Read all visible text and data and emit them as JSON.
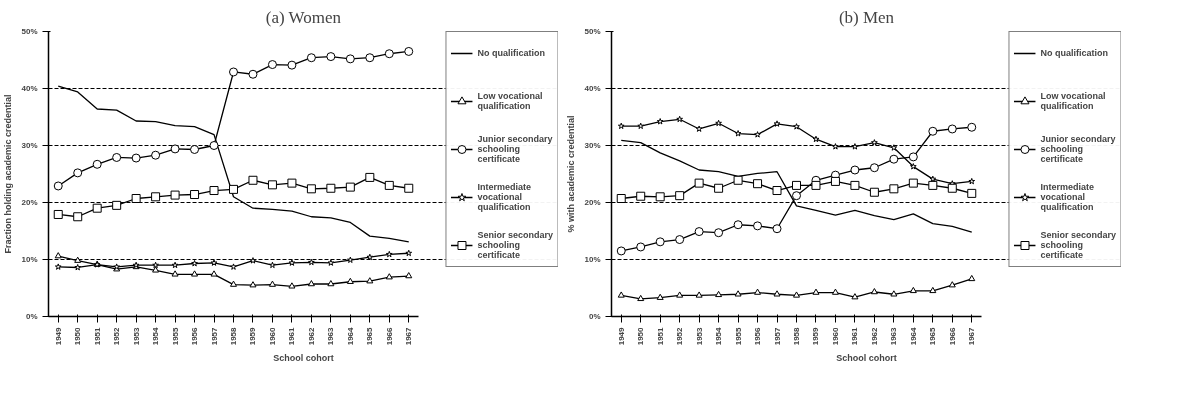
{
  "chart_data": [
    {
      "type": "line",
      "title": "(a) Women",
      "xlabel": "School cohort",
      "ylabel": "Fraction holding academic credential",
      "categories": [
        "1949",
        "1950",
        "1951",
        "1952",
        "1953",
        "1954",
        "1955",
        "1956",
        "1957",
        "1958",
        "1959",
        "1960",
        "1961",
        "1962",
        "1963",
        "1964",
        "1965",
        "1966",
        "1967"
      ],
      "ylim": [
        0,
        50
      ],
      "yticks": [
        {
          "value": 0,
          "label": "0%"
        },
        {
          "value": 10,
          "label": "10%"
        },
        {
          "value": 20,
          "label": "20%"
        },
        {
          "value": 30,
          "label": "30%"
        },
        {
          "value": 40,
          "label": "40%"
        },
        {
          "value": 50,
          "label": "50%"
        }
      ],
      "grid": "y",
      "legend": "right",
      "line_style": "solid",
      "series": [
        {
          "name": "No qualification",
          "color": "#000000",
          "marker": "none",
          "values": [
            40.4,
            39.4,
            36.4,
            36.2,
            34.3,
            34.2,
            33.5,
            33.3,
            31.9,
            21.0,
            19.0,
            18.8,
            18.5,
            17.5,
            17.3,
            16.5,
            14.1,
            13.7,
            13.1
          ]
        },
        {
          "name": "Low vocational qualification",
          "color": "#000000",
          "marker": "triangle",
          "values": [
            10.6,
            9.8,
            9.1,
            8.3,
            8.7,
            8.1,
            7.4,
            7.4,
            7.4,
            5.6,
            5.5,
            5.6,
            5.3,
            5.7,
            5.7,
            6.1,
            6.2,
            6.9,
            7.1
          ]
        },
        {
          "name": "Junior secondary schooling certificate",
          "color": "#000000",
          "marker": "circle",
          "values": [
            22.9,
            25.2,
            26.7,
            27.9,
            27.8,
            28.3,
            29.4,
            29.3,
            30.0,
            42.9,
            42.5,
            44.2,
            44.1,
            45.4,
            45.6,
            45.2,
            45.4,
            46.1,
            46.5
          ]
        },
        {
          "name": "Intermediate vocational qualification",
          "color": "#000000",
          "marker": "star",
          "values": [
            8.7,
            8.6,
            9.1,
            8.7,
            9.0,
            9.0,
            9.0,
            9.3,
            9.4,
            8.7,
            9.8,
            9.0,
            9.4,
            9.5,
            9.4,
            9.9,
            10.4,
            10.9,
            11.1
          ]
        },
        {
          "name": "Senior secondary schooling certificate",
          "color": "#000000",
          "marker": "square",
          "values": [
            17.9,
            17.5,
            19.0,
            19.5,
            20.7,
            21.0,
            21.3,
            21.4,
            22.1,
            22.3,
            23.9,
            23.1,
            23.4,
            22.4,
            22.5,
            22.7,
            24.4,
            23.0,
            22.5
          ]
        }
      ]
    },
    {
      "type": "line",
      "title": "(b) Men",
      "xlabel": "School cohort",
      "ylabel": "% with academic credential",
      "categories": [
        "1949",
        "1950",
        "1951",
        "1952",
        "1953",
        "1954",
        "1955",
        "1956",
        "1957",
        "1958",
        "1959",
        "1960",
        "1961",
        "1962",
        "1963",
        "1964",
        "1965",
        "1966",
        "1967"
      ],
      "ylim": [
        0,
        50
      ],
      "yticks": [
        {
          "value": 0,
          "label": "0%"
        },
        {
          "value": 10,
          "label": "10%"
        },
        {
          "value": 20,
          "label": "20%"
        },
        {
          "value": 30,
          "label": "30%"
        },
        {
          "value": 40,
          "label": "40%"
        },
        {
          "value": 50,
          "label": "50%"
        }
      ],
      "grid": "y",
      "legend": "right",
      "line_style": "solid",
      "series": [
        {
          "name": "No qualification",
          "color": "#000000",
          "marker": "none",
          "values": [
            30.9,
            30.5,
            28.7,
            27.3,
            25.7,
            25.4,
            24.6,
            25.1,
            25.4,
            19.4,
            18.6,
            17.8,
            18.6,
            17.7,
            17.0,
            18.0,
            16.3,
            15.8,
            14.8
          ]
        },
        {
          "name": "Low vocational qualification",
          "color": "#000000",
          "marker": "triangle",
          "values": [
            3.7,
            3.1,
            3.3,
            3.7,
            3.7,
            3.8,
            3.9,
            4.2,
            3.9,
            3.7,
            4.2,
            4.2,
            3.4,
            4.3,
            3.9,
            4.5,
            4.5,
            5.5,
            6.6
          ]
        },
        {
          "name": "Junior secondary schooling certificate",
          "color": "#000000",
          "marker": "circle",
          "values": [
            11.5,
            12.2,
            13.1,
            13.5,
            14.9,
            14.7,
            16.1,
            15.9,
            15.4,
            21.2,
            23.9,
            24.8,
            25.7,
            26.1,
            27.6,
            28.0,
            32.5,
            32.9,
            33.2
          ]
        },
        {
          "name": "Intermediate vocational qualification",
          "color": "#000000",
          "marker": "star",
          "values": [
            33.4,
            33.4,
            34.2,
            34.6,
            32.9,
            33.9,
            32.1,
            31.9,
            33.8,
            33.3,
            31.1,
            29.8,
            29.8,
            30.5,
            29.6,
            26.3,
            24.1,
            23.3,
            23.7
          ]
        },
        {
          "name": "Senior secondary schooling certificate",
          "color": "#000000",
          "marker": "square",
          "values": [
            20.7,
            21.1,
            21.0,
            21.2,
            23.4,
            22.5,
            23.9,
            23.3,
            22.1,
            23.0,
            23.0,
            23.7,
            23.0,
            21.8,
            22.4,
            23.4,
            23.0,
            22.5,
            21.6
          ]
        }
      ]
    }
  ]
}
